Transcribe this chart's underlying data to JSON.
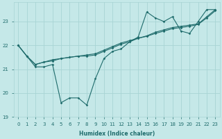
{
  "xlabel": "Humidex (Indice chaleur)",
  "ylabel": "",
  "bg_color": "#c5e8e8",
  "line_color": "#1e6b6b",
  "grid_color": "#a8d4d4",
  "xlim": [
    -0.5,
    23.5
  ],
  "ylim": [
    19.0,
    23.8
  ],
  "xticks": [
    0,
    1,
    2,
    3,
    4,
    5,
    6,
    7,
    8,
    9,
    10,
    11,
    12,
    13,
    14,
    15,
    16,
    17,
    18,
    19,
    20,
    21,
    22,
    23
  ],
  "yticks": [
    19,
    20,
    21,
    22,
    23
  ],
  "series1_x": [
    0,
    1,
    2,
    3,
    4,
    5,
    6,
    7,
    8,
    9,
    10,
    11,
    12,
    13,
    14,
    15,
    16,
    17,
    18,
    19,
    20,
    21,
    22,
    23
  ],
  "series1_y": [
    22.0,
    21.55,
    21.1,
    21.1,
    21.2,
    19.6,
    19.8,
    19.8,
    19.5,
    20.6,
    21.45,
    21.75,
    21.85,
    22.15,
    22.35,
    23.4,
    23.15,
    23.0,
    23.2,
    22.6,
    22.5,
    23.0,
    23.5,
    23.5
  ],
  "series2_x": [
    0,
    1,
    2,
    3,
    4,
    5,
    6,
    7,
    8,
    9,
    10,
    11,
    12,
    13,
    14,
    15,
    16,
    17,
    18,
    19,
    20,
    21,
    22,
    23
  ],
  "series2_y": [
    22.0,
    21.55,
    21.2,
    21.3,
    21.4,
    21.45,
    21.5,
    21.55,
    21.6,
    21.65,
    21.8,
    21.95,
    22.1,
    22.2,
    22.3,
    22.4,
    22.55,
    22.65,
    22.75,
    22.8,
    22.85,
    22.9,
    23.2,
    23.5
  ],
  "series3_x": [
    0,
    1,
    2,
    3,
    4,
    5,
    6,
    7,
    8,
    9,
    10,
    11,
    12,
    13,
    14,
    15,
    16,
    17,
    18,
    19,
    20,
    21,
    22,
    23
  ],
  "series3_y": [
    22.0,
    21.55,
    21.2,
    21.3,
    21.35,
    21.45,
    21.5,
    21.55,
    21.55,
    21.6,
    21.75,
    21.9,
    22.05,
    22.15,
    22.3,
    22.38,
    22.5,
    22.6,
    22.7,
    22.75,
    22.8,
    22.88,
    23.15,
    23.45
  ],
  "marker": "D",
  "markersize": 1.8,
  "linewidth": 0.8
}
